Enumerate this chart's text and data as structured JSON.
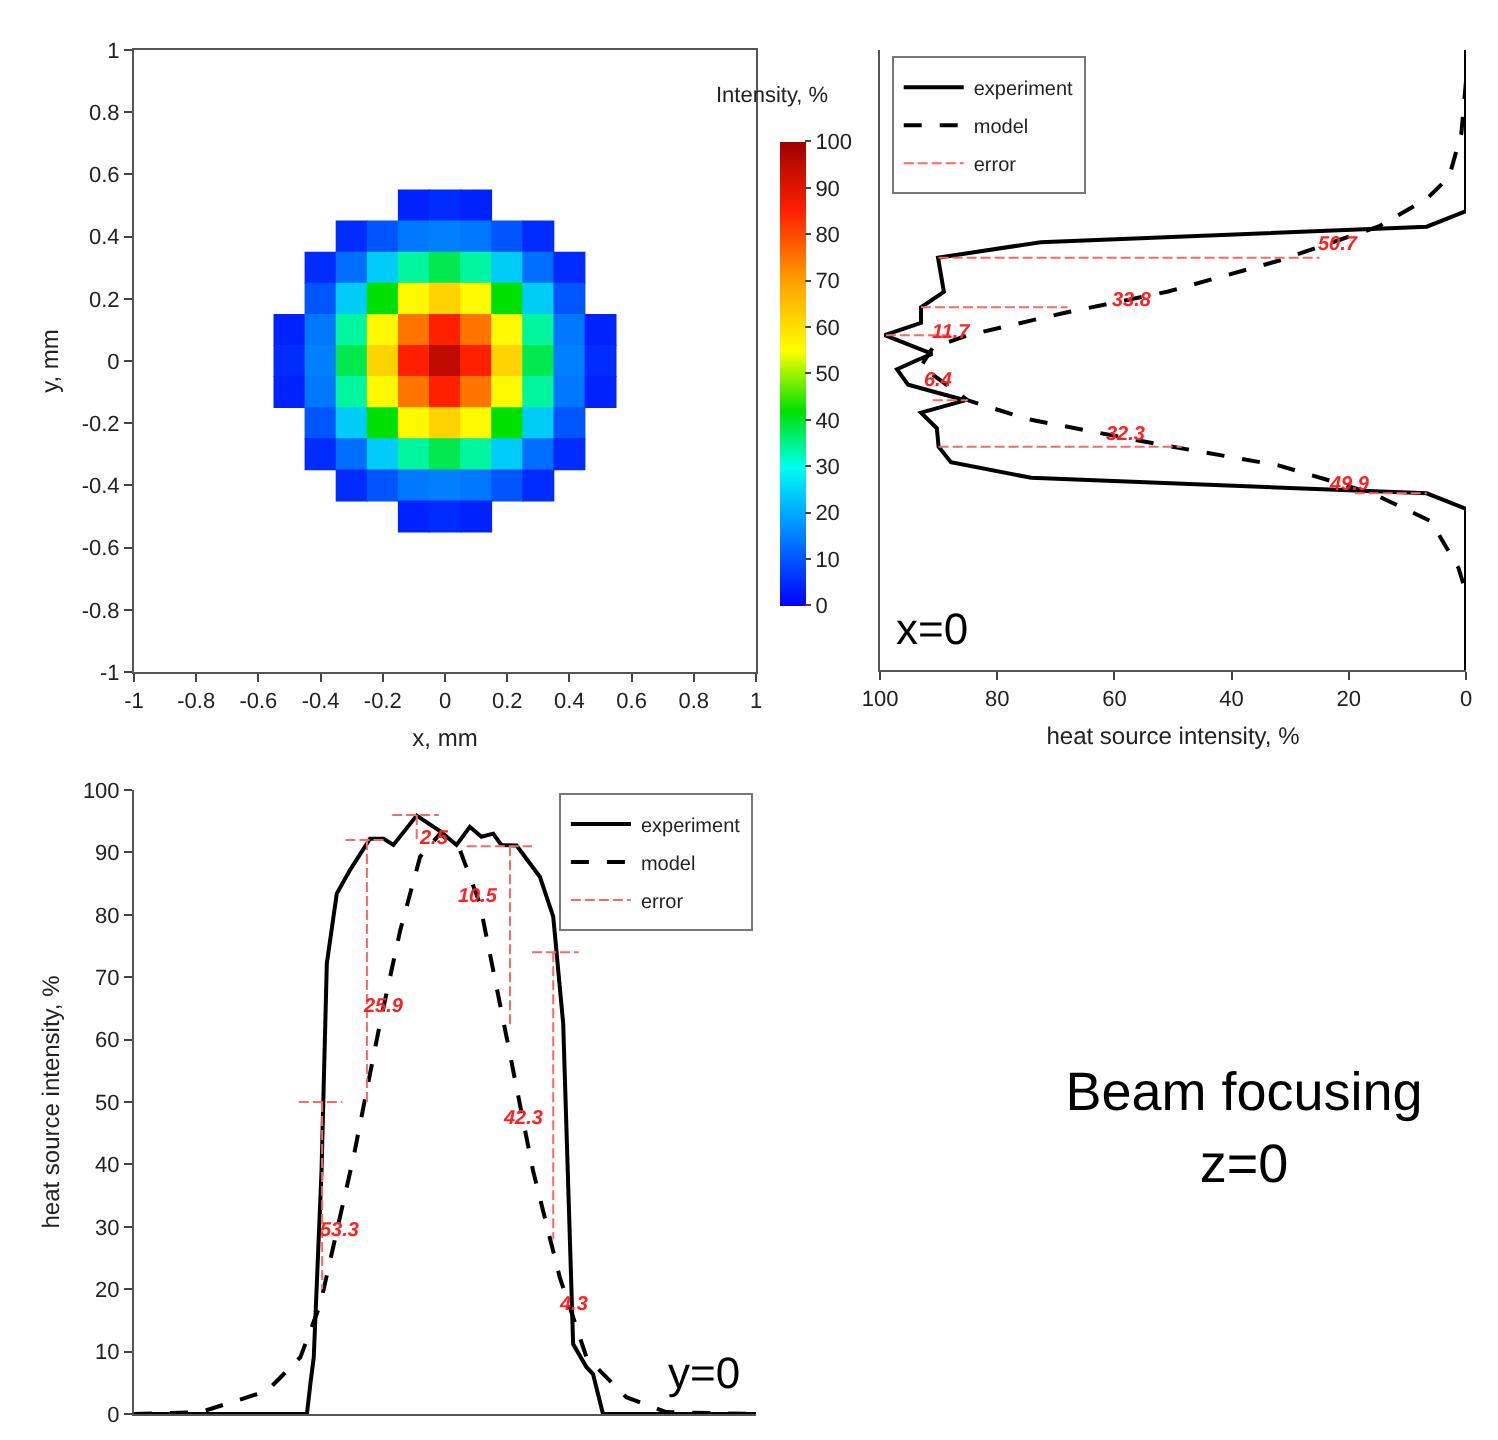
{
  "chart_data": [
    {
      "type": "scatter",
      "xlabel": "x, mm",
      "ylabel": "y, mm",
      "clabel": "Intensity, %",
      "xlim": [
        -1,
        1
      ],
      "ylim": [
        -1,
        1
      ],
      "marker": "square",
      "xticks": [
        -1,
        {
          "value": -0.8,
          "label": "-0.8"
        },
        {
          "value": -0.6,
          "label": "-0.6"
        },
        {
          "value": -0.4,
          "label": "-0.4"
        },
        {
          "value": -0.2,
          "label": "-0.2"
        },
        0,
        0.2,
        0.4,
        0.6,
        0.8,
        1
      ],
      "yticks": [
        -1,
        {
          "value": -0.8,
          "label": "-0.8"
        },
        {
          "value": -0.6,
          "label": "-0.6"
        },
        {
          "value": -0.4,
          "label": "-0.4"
        },
        {
          "value": -0.2,
          "label": "-0.2"
        },
        0,
        0.2,
        0.4,
        0.6,
        0.8,
        1
      ],
      "clim": [
        0,
        100
      ],
      "cticks": [
        0,
        10,
        20,
        30,
        40,
        50,
        60,
        70,
        80,
        90,
        100
      ],
      "x": [
        -0.1,
        0,
        0.1,
        -0.3,
        -0.2,
        -0.1,
        0,
        0.1,
        0.2,
        0.3,
        -0.4,
        -0.3,
        -0.2,
        -0.1,
        0,
        0.1,
        0.2,
        0.3,
        0.4,
        -0.4,
        -0.3,
        -0.2,
        -0.1,
        0,
        0.1,
        0.2,
        0.3,
        0.4,
        -0.5,
        -0.4,
        -0.3,
        -0.2,
        -0.1,
        0,
        0.1,
        0.2,
        0.3,
        0.4,
        0.5,
        -0.5,
        -0.4,
        -0.3,
        -0.2,
        -0.1,
        0,
        0.1,
        0.2,
        0.3,
        0.4,
        0.5,
        -0.5,
        -0.4,
        -0.3,
        -0.2,
        -0.1,
        0,
        0.1,
        0.2,
        0.3,
        0.4,
        0.5,
        -0.4,
        -0.3,
        -0.2,
        -0.1,
        0,
        0.1,
        0.2,
        0.3,
        0.4,
        -0.4,
        -0.3,
        -0.2,
        -0.1,
        0,
        0.1,
        0.2,
        0.3,
        0.4,
        -0.3,
        -0.2,
        -0.1,
        0,
        0.1,
        0.2,
        0.3,
        -0.1,
        0,
        0.1
      ],
      "values": [
        0.5,
        0.5,
        0.5,
        0.4,
        0.4,
        0.4,
        0.4,
        0.4,
        0.4,
        0.4,
        0.3,
        0.3,
        0.3,
        0.3,
        0.3,
        0.3,
        0.3,
        0.3,
        0.3,
        0.2,
        0.2,
        0.2,
        0.2,
        0.2,
        0.2,
        0.2,
        0.2,
        0.2,
        0.1,
        0.1,
        0.1,
        0.1,
        0.1,
        0.1,
        0.1,
        0.1,
        0.1,
        0.1,
        0.1,
        0,
        0,
        0,
        0,
        0,
        0,
        0,
        0,
        0,
        0,
        0,
        -0.1,
        -0.1,
        -0.1,
        -0.1,
        -0.1,
        -0.1,
        -0.1,
        -0.1,
        -0.1,
        -0.1,
        -0.1,
        -0.2,
        -0.2,
        -0.2,
        -0.2,
        -0.2,
        -0.2,
        -0.2,
        -0.2,
        -0.2,
        -0.3,
        -0.3,
        -0.3,
        -0.3,
        -0.3,
        -0.3,
        -0.3,
        -0.3,
        -0.3,
        -0.4,
        -0.4,
        -0.4,
        -0.4,
        -0.4,
        -0.4,
        -0.4,
        -0.5,
        -0.5,
        -0.5
      ],
      "cvalues": [
        4,
        5,
        4,
        5,
        10,
        14,
        15,
        14,
        10,
        5,
        5,
        13,
        24,
        34,
        38,
        34,
        24,
        13,
        5,
        10,
        24,
        42,
        56,
        62,
        56,
        42,
        24,
        10,
        4,
        14,
        34,
        56,
        75,
        85,
        75,
        56,
        34,
        14,
        4,
        5,
        15,
        38,
        62,
        85,
        95,
        85,
        62,
        38,
        15,
        5,
        4,
        14,
        34,
        56,
        75,
        85,
        75,
        56,
        34,
        14,
        4,
        10,
        24,
        42,
        56,
        62,
        56,
        42,
        24,
        10,
        5,
        13,
        24,
        34,
        38,
        34,
        24,
        13,
        5,
        5,
        10,
        14,
        15,
        14,
        10,
        5,
        4,
        5,
        4
      ]
    },
    {
      "type": "line",
      "xlabel": "heat source intensity, %",
      "xlim": [
        100,
        0
      ],
      "xticks": [
        0,
        20,
        40,
        60,
        80,
        100
      ],
      "ylim": [
        -1,
        1
      ],
      "tick_labels": "x",
      "legend": "top left",
      "marker": "none",
      "series": [
        {
          "name": "experiment",
          "color": "#000000",
          "line_style": "solid",
          "x": [
            0,
            0,
            6.7,
            72.6,
            90.1,
            89.1,
            93,
            93,
            99.2,
            91.1,
            93.6,
            97.1,
            95.2,
            85.5,
            93,
            90.3,
            90,
            87.9,
            74.2,
            6.7,
            0,
            0
          ],
          "values": [
            1,
            0.48,
            0.43,
            0.38,
            0.33,
            0.22,
            0.17,
            0.12,
            0.08,
            0.02,
            0,
            -0.03,
            -0.08,
            -0.13,
            -0.17,
            -0.22,
            -0.28,
            -0.33,
            -0.38,
            -0.43,
            -0.48,
            -1
          ]
        },
        {
          "name": "model",
          "color": "#000000",
          "line_style": "dashed",
          "x": [
            0,
            0.8,
            2.9,
            6.7,
            15,
            32,
            51,
            69,
            85,
            91,
            93,
            85,
            75,
            53,
            32,
            16,
            6,
            1.3,
            0
          ],
          "values": [
            0.9,
            0.73,
            0.59,
            0.52,
            0.43,
            0.32,
            0.22,
            0.15,
            0.08,
            0.04,
            -0.02,
            -0.13,
            -0.19,
            -0.27,
            -0.34,
            -0.43,
            -0.52,
            -0.67,
            -0.75
          ]
        },
        {
          "name": "error",
          "color": "#ff6666",
          "line_style": "dashed",
          "x": [
            90,
            25,
            null,
            93,
            68,
            null,
            99,
            88,
            null,
            91,
            85,
            null,
            90,
            48.5,
            null,
            19,
            6.7
          ],
          "values": [
            0.33,
            0.33,
            null,
            0.17,
            0.17,
            null,
            0.08,
            0.08,
            null,
            -0.13,
            -0.13,
            null,
            -0.28,
            -0.28,
            null,
            -0.43,
            -0.43
          ]
        }
      ],
      "annotations": [
        {
          "text": "50.7",
          "x": 22,
          "y": 0.37
        },
        {
          "text": "33.8",
          "x": 57,
          "y": 0.19
        },
        {
          "text": "11.7",
          "x": 88,
          "y": 0.09
        },
        {
          "text": "6.4",
          "x": 90,
          "y": -0.07
        },
        {
          "text": "32.3",
          "x": 58,
          "y": -0.24
        },
        {
          "text": "49.9",
          "x": 20,
          "y": -0.4
        },
        "x=0"
      ]
    },
    {
      "type": "line",
      "ylabel": "heat source intensity, %",
      "xlim": [
        -1,
        1
      ],
      "ylim": [
        0,
        100
      ],
      "yticks": [
        0,
        10,
        20,
        30,
        40,
        50,
        60,
        70,
        80,
        90,
        100
      ],
      "tick_labels": "y",
      "legend": "top right",
      "marker": "none",
      "series": [
        {
          "name": "experiment",
          "color": "#000000",
          "line_style": "solid",
          "x": [
            -1,
            -0.444,
            -0.433,
            -0.422,
            -0.397,
            -0.38,
            -0.348,
            -0.305,
            -0.241,
            -0.198,
            -0.166,
            -0.091,
            -0.016,
            0.037,
            0.08,
            0.117,
            0.155,
            0.181,
            0.23,
            0.305,
            0.348,
            0.38,
            0.412,
            0.455,
            0.476,
            0.508,
            1
          ],
          "values": [
            0,
            0,
            4.8,
            9.1,
            39,
            72.2,
            83.4,
            87.2,
            92.2,
            92.2,
            91.2,
            95.9,
            93.4,
            91.2,
            94.1,
            92.5,
            93,
            91.2,
            91.1,
            86.1,
            79.7,
            62.6,
            11.2,
            7.5,
            6.4,
            0,
            0
          ]
        },
        {
          "name": "model",
          "color": "#000000",
          "line_style": "dashed",
          "x": [
            -1,
            -0.786,
            -0.572,
            -0.465,
            -0.401,
            -0.294,
            -0.209,
            -0.144,
            -0.08,
            -0.016,
            0.048,
            0.112,
            0.198,
            0.283,
            0.369,
            0.455,
            0.583,
            0.711,
            1
          ],
          "values": [
            0,
            0.3,
            3.7,
            9.1,
            17.6,
            41.2,
            62.6,
            77.5,
            89.3,
            93,
            90.4,
            81.8,
            60.4,
            39,
            21.9,
            9.1,
            2.7,
            0.3,
            0
          ]
        },
        {
          "name": "error",
          "color": "#ff6666",
          "line_style": "dashed",
          "x": [
            -0.47,
            -0.33,
            null,
            -0.395,
            -0.395,
            null,
            -0.32,
            -0.19,
            null,
            -0.251,
            -0.251,
            null,
            -0.17,
            -0.02,
            null,
            -0.091,
            -0.091,
            null,
            0.07,
            0.28,
            null,
            0.209,
            0.209,
            null,
            0.28,
            0.43,
            null,
            0.348,
            0.348
          ],
          "values": [
            50,
            50,
            null,
            50,
            20,
            null,
            92,
            92,
            null,
            92,
            50,
            null,
            96,
            96,
            null,
            96,
            92,
            null,
            91,
            91,
            null,
            91,
            62,
            null,
            74,
            74,
            null,
            74,
            28
          ]
        }
      ],
      "annotations": [
        {
          "text": "53.3",
          "x": -0.337,
          "y": 29.4
        },
        {
          "text": "25.9",
          "x": -0.198,
          "y": 65.2
        },
        {
          "text": "2.5",
          "x": -0.037,
          "y": 92
        },
        {
          "text": "10.5",
          "x": 0.108,
          "y": 82.7
        },
        {
          "text": "42.3",
          "x": 0.251,
          "y": 47.4
        },
        {
          "text": "4.3",
          "x": 0.412,
          "y": 17.6
        },
        "y=0"
      ]
    },
    {
      "type": "other",
      "annotations": [
        "Beam focusing",
        "z=0"
      ]
    }
  ]
}
